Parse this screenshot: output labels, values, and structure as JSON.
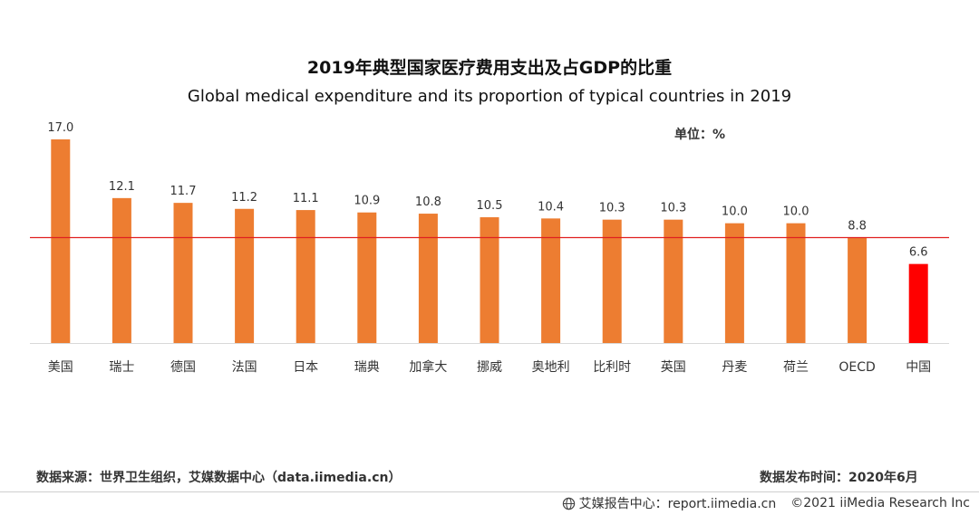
{
  "chart_data": {
    "type": "bar",
    "title": "2019年典型国家医疗费用支出及占GDP的比重",
    "subtitle": "Global medical expenditure and its proportion of typical countries in 2019",
    "unit_label": "单位：%",
    "categories": [
      "美国",
      "瑞士",
      "德国",
      "法国",
      "日本",
      "瑞典",
      "加拿大",
      "挪威",
      "奥地利",
      "比利时",
      "英国",
      "丹麦",
      "荷兰",
      "OECD",
      "中国"
    ],
    "values": [
      17.0,
      12.1,
      11.7,
      11.2,
      11.1,
      10.9,
      10.8,
      10.5,
      10.4,
      10.3,
      10.3,
      10.0,
      10.0,
      8.8,
      6.6
    ],
    "value_labels": [
      "17.0",
      "12.1",
      "11.7",
      "11.2",
      "11.1",
      "10.9",
      "10.8",
      "10.5",
      "10.4",
      "10.3",
      "10.3",
      "10.0",
      "10.0",
      "8.8",
      "6.6"
    ],
    "bar_color": "#ED7D31",
    "highlight_color": "#FF0000",
    "highlight_index": 14,
    "reference_line": {
      "value": 8.8,
      "color": "#E02020"
    },
    "ylim": [
      0,
      17
    ],
    "grid": false,
    "legend": "none"
  },
  "footer": {
    "source": "数据来源：世界卫生组织，艾媒数据中心（data.iimedia.cn）",
    "publish_date": "数据发布时间：2020年6月",
    "brand": "艾媒报告中心：report.iimedia.cn",
    "copyright": "©2021  iiMedia Research  Inc"
  }
}
